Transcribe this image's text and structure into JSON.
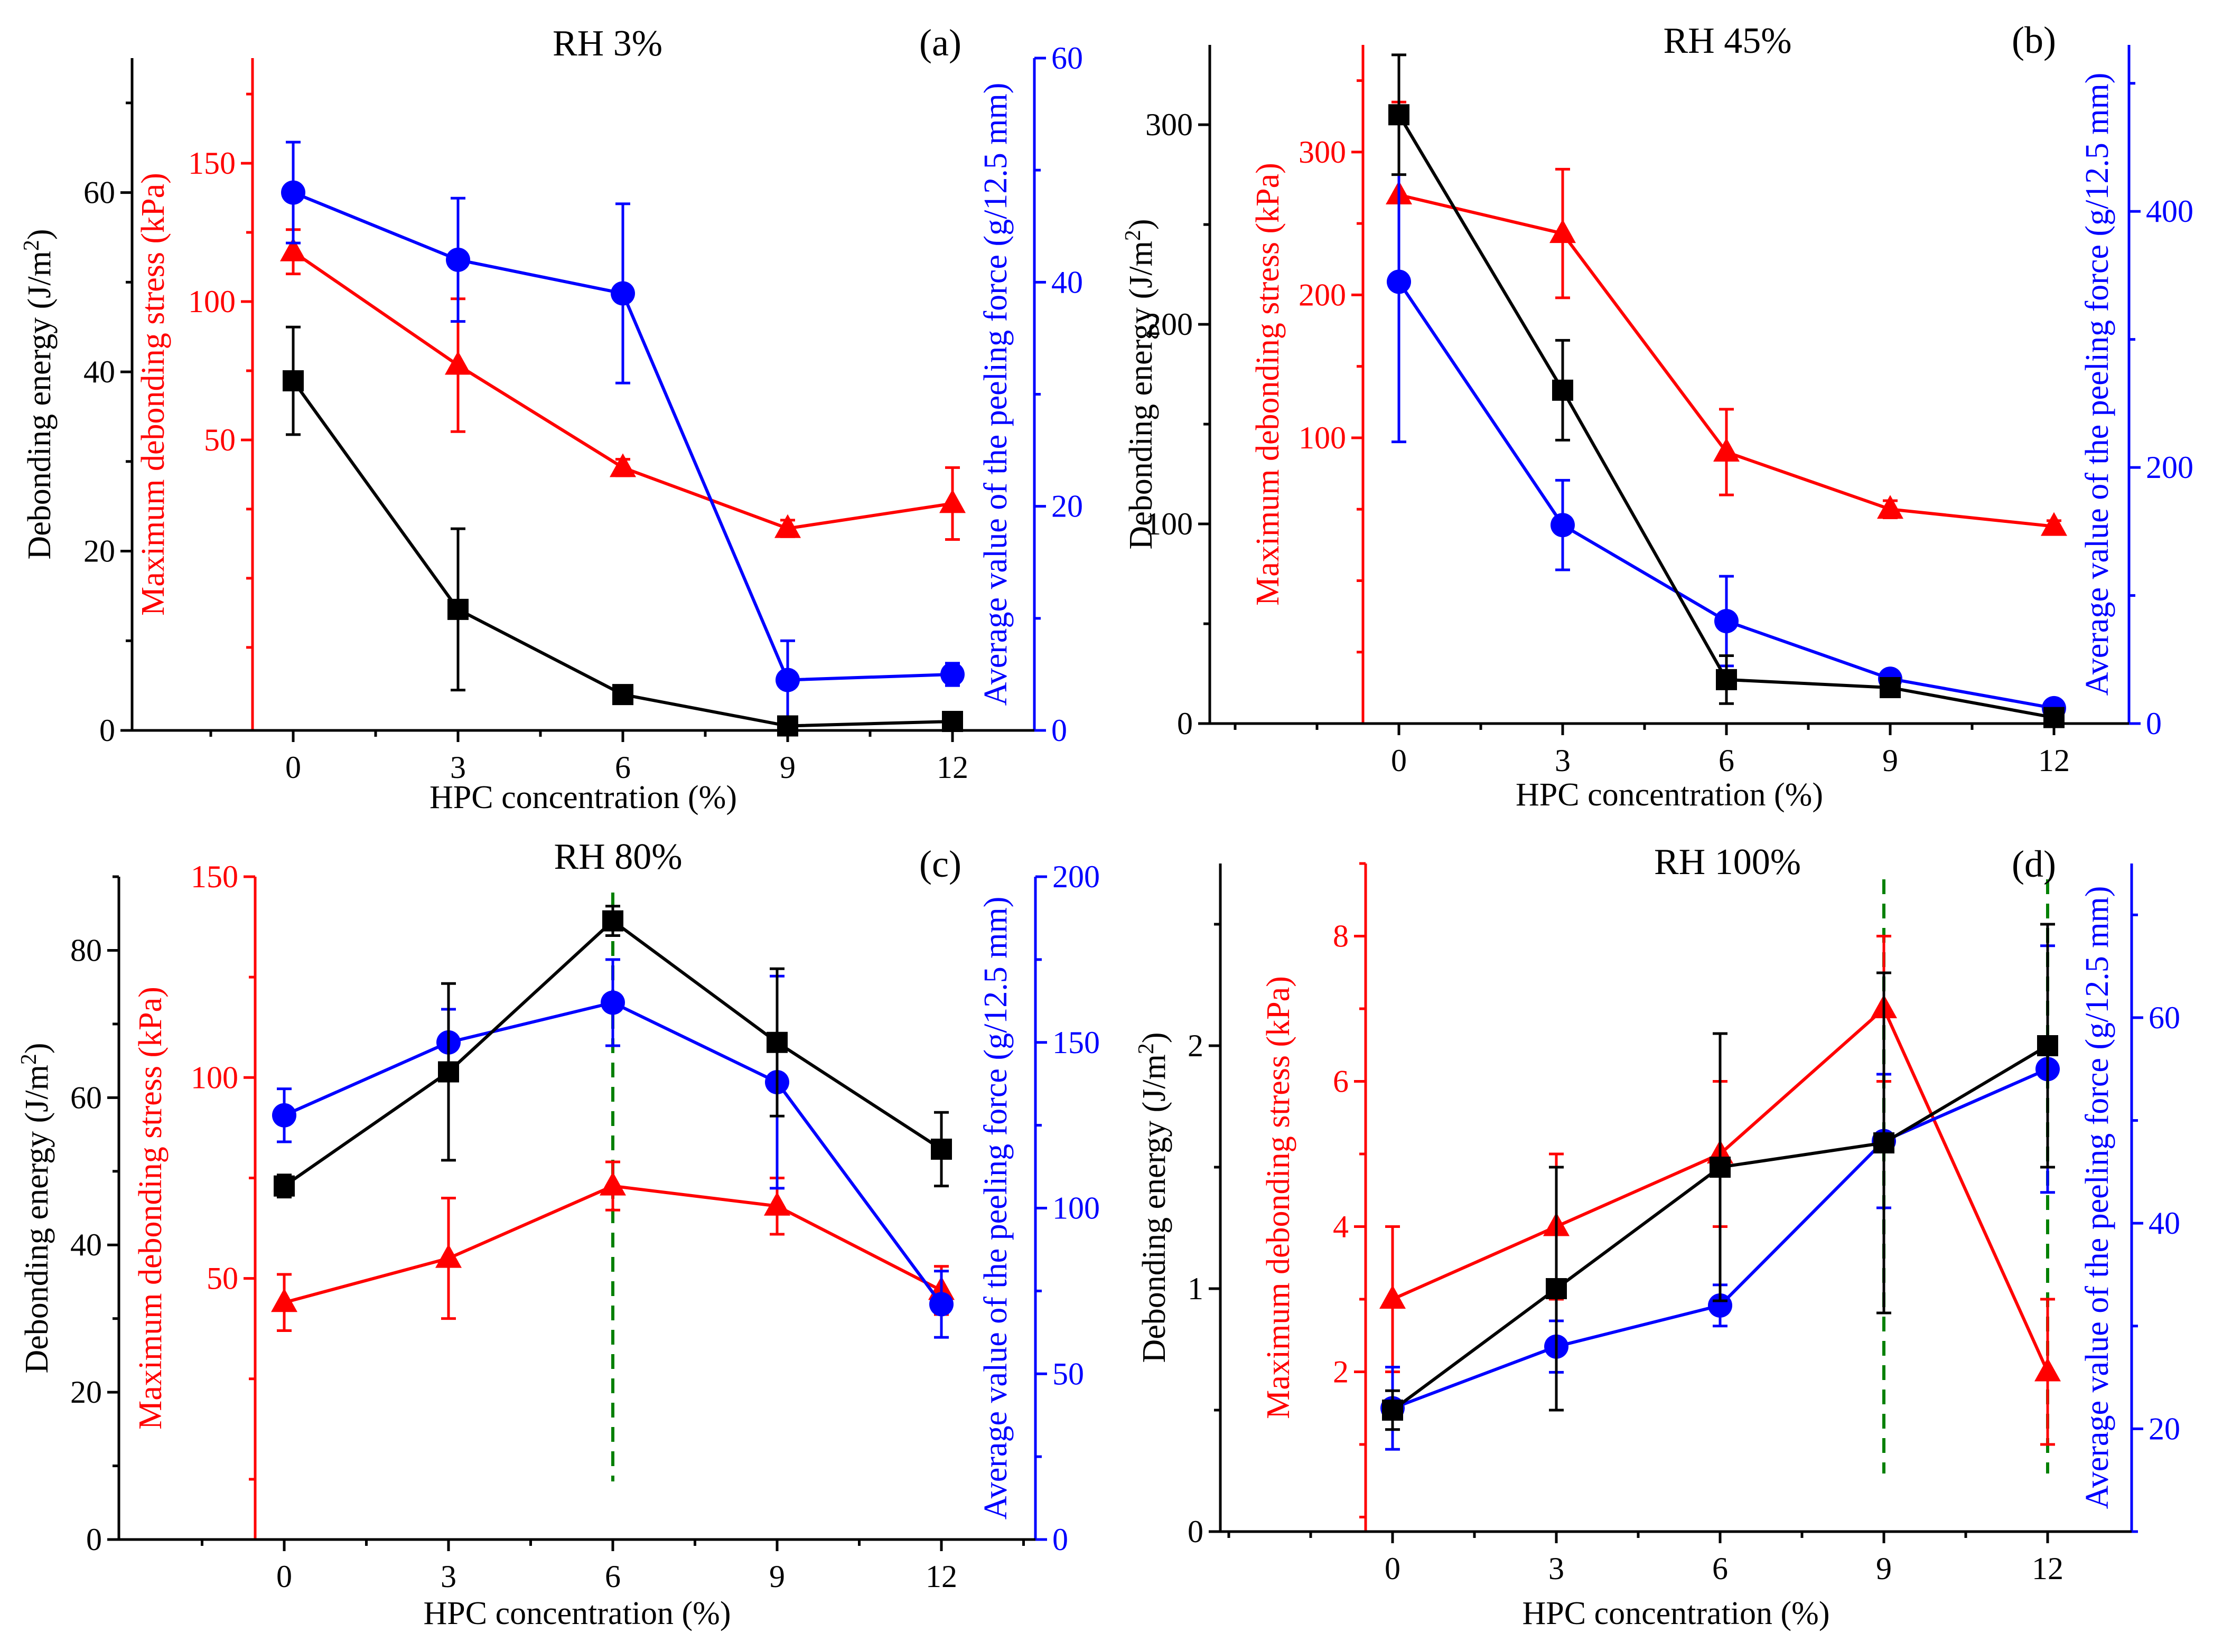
{
  "figure": {
    "colors": {
      "energy": "#000000",
      "stress": "#ff0000",
      "peel": "#0000ff",
      "guide": "#008000"
    },
    "x_axis_title": "HPC concentration (%)",
    "y_energy_title": "Debonding energy (J/m",
    "y_energy_sup": "2",
    "y_energy_close": ")",
    "y_stress_title": "Maximum debonding stress (kPa)",
    "y_peel_title": "Average value of the peeling force (g/12.5 mm)"
  },
  "chart_data": [
    {
      "type": "line",
      "panel": "(a)",
      "title": "RH 3%",
      "x": [
        0,
        3,
        6,
        9,
        12
      ],
      "x_ticks": [
        "0",
        "3",
        "6",
        "9",
        "12"
      ],
      "xlabel": "HPC concentration (%)",
      "axes": {
        "energy": {
          "range": [
            0,
            75
          ],
          "ticks": [
            0,
            20,
            40,
            60
          ]
        },
        "stress": {
          "range": [
            -55,
            188
          ],
          "ticks": [
            50,
            100,
            150
          ]
        },
        "peel": {
          "range": [
            0,
            60
          ],
          "ticks": [
            0,
            20,
            40,
            60
          ]
        }
      },
      "series": [
        {
          "name": "Debonding energy",
          "axis": "energy",
          "marker": "square",
          "values": [
            39,
            13.5,
            4,
            0.5,
            1
          ],
          "err": [
            6,
            9,
            1,
            0.3,
            0.3
          ]
        },
        {
          "name": "Maximum debonding stress",
          "axis": "stress",
          "marker": "triangle",
          "values": [
            118,
            77,
            40,
            18,
            27
          ],
          "err": [
            8,
            24,
            3,
            3,
            13
          ]
        },
        {
          "name": "Average value of the peeling force",
          "axis": "peel",
          "marker": "circle",
          "values": [
            48,
            42,
            39,
            4.5,
            5
          ],
          "err": [
            4.5,
            5.5,
            8,
            3.5,
            1
          ]
        }
      ],
      "guides": []
    },
    {
      "type": "line",
      "panel": "(b)",
      "title": "RH 45%",
      "x": [
        0,
        3,
        6,
        9,
        12
      ],
      "x_ticks": [
        "0",
        "3",
        "6",
        "9",
        "12"
      ],
      "xlabel": "HPC concentration (%)",
      "axes": {
        "energy": {
          "range": [
            0,
            340
          ],
          "ticks": [
            0,
            100,
            200,
            300
          ]
        },
        "stress": {
          "range": [
            -100,
            375
          ],
          "ticks": [
            100,
            200,
            300
          ]
        },
        "peel": {
          "range": [
            0,
            530
          ],
          "ticks": [
            0,
            200,
            400
          ]
        }
      },
      "series": [
        {
          "name": "Debonding energy",
          "axis": "energy",
          "marker": "square",
          "values": [
            305,
            167,
            22,
            18,
            3
          ],
          "err": [
            30,
            25,
            12,
            3,
            2
          ]
        },
        {
          "name": "Maximum debonding stress",
          "axis": "stress",
          "marker": "triangle",
          "values": [
            270,
            243,
            90,
            50,
            38
          ],
          "err": [
            65,
            45,
            30,
            6,
            4
          ]
        },
        {
          "name": "Average value of the peeling force",
          "axis": "peel",
          "marker": "circle",
          "values": [
            345,
            155,
            80,
            35,
            12
          ],
          "err": [
            125,
            35,
            35,
            5,
            3
          ]
        }
      ],
      "guides": []
    },
    {
      "type": "line",
      "panel": "(c)",
      "title": "RH 80%",
      "x": [
        0,
        3,
        6,
        9,
        12
      ],
      "x_ticks": [
        "0",
        "3",
        "6",
        "9",
        "12"
      ],
      "xlabel": "HPC concentration (%)",
      "axes": {
        "energy": {
          "range": [
            0,
            90
          ],
          "ticks": [
            0,
            20,
            40,
            60,
            80
          ]
        },
        "stress": {
          "range": [
            -15,
            150
          ],
          "ticks": [
            50,
            100,
            150
          ]
        },
        "peel": {
          "range": [
            0,
            200
          ],
          "ticks": [
            0,
            50,
            100,
            150,
            200
          ]
        }
      },
      "series": [
        {
          "name": "Debonding energy",
          "axis": "energy",
          "marker": "square",
          "values": [
            48,
            63.5,
            84,
            67.5,
            53
          ],
          "err": [
            1.5,
            12,
            2,
            10,
            5
          ]
        },
        {
          "name": "Maximum debonding stress",
          "axis": "stress",
          "marker": "triangle",
          "values": [
            44,
            55,
            73,
            68,
            47
          ],
          "err": [
            7,
            15,
            6,
            7,
            6
          ]
        },
        {
          "name": "Average value of the peeling force",
          "axis": "peel",
          "marker": "circle",
          "values": [
            128,
            150,
            162,
            138,
            71
          ],
          "err": [
            8,
            10,
            13,
            32,
            10
          ]
        }
      ],
      "guides": [
        6
      ]
    },
    {
      "type": "line",
      "panel": "(d)",
      "title": "RH 100%",
      "x": [
        0,
        3,
        6,
        9,
        12
      ],
      "x_ticks": [
        "0",
        "3",
        "6",
        "9",
        "12"
      ],
      "xlabel": "HPC concentration (%)",
      "axes": {
        "energy": {
          "range": [
            0,
            2.75
          ],
          "ticks": [
            0,
            1,
            2
          ]
        },
        "stress": {
          "range": [
            -0.2,
            9.0
          ],
          "ticks": [
            2,
            4,
            6,
            8
          ]
        },
        "peel": {
          "range": [
            10,
            75
          ],
          "ticks": [
            20,
            40,
            60
          ]
        }
      },
      "series": [
        {
          "name": "Debonding energy",
          "axis": "energy",
          "marker": "square",
          "values": [
            0.5,
            1.0,
            1.5,
            1.6,
            2.0
          ],
          "err": [
            0.08,
            0.5,
            0.55,
            0.7,
            0.5
          ]
        },
        {
          "name": "Maximum debonding stress",
          "axis": "stress",
          "marker": "triangle",
          "values": [
            3.0,
            4.0,
            5.0,
            7.0,
            2.0
          ],
          "err": [
            1.0,
            1.0,
            1.0,
            1.0,
            1.0
          ]
        },
        {
          "name": "Average value of the peeling force",
          "axis": "peel",
          "marker": "circle",
          "values": [
            22,
            28,
            32,
            48,
            55
          ],
          "err": [
            4,
            2.5,
            2,
            6.5,
            12
          ]
        }
      ],
      "guides": [
        9,
        12
      ]
    }
  ]
}
